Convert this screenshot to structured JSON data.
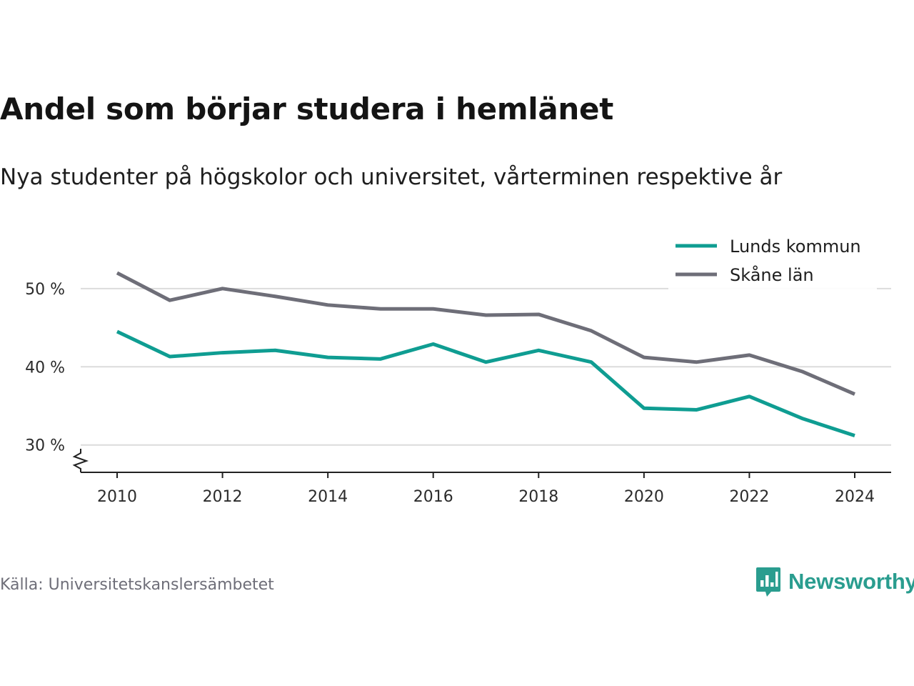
{
  "title": "Andel som börjar studera i hemlänet",
  "subtitle": "Nya studenter på högskolor och universitet, vårterminen respektive år",
  "source": "Källa: Universitetskanslersämbetet",
  "brand": {
    "name": "Newsworthy",
    "color": "#2a9d8f",
    "icon": "bar-chart-speech-bubble-icon"
  },
  "chart_data": {
    "type": "line",
    "x": [
      2010,
      2011,
      2012,
      2013,
      2014,
      2015,
      2016,
      2017,
      2018,
      2019,
      2020,
      2021,
      2022,
      2023,
      2024
    ],
    "series": [
      {
        "name": "Lunds kommun",
        "color": "#0f9d92",
        "values": [
          44.5,
          41.3,
          41.8,
          42.1,
          41.2,
          41.0,
          42.9,
          40.6,
          42.1,
          40.6,
          34.7,
          34.5,
          36.2,
          33.4,
          31.2
        ]
      },
      {
        "name": "Skåne län",
        "color": "#6e6e78",
        "values": [
          52.0,
          48.5,
          50.0,
          49.0,
          47.9,
          47.4,
          47.4,
          46.6,
          46.7,
          44.6,
          41.2,
          40.6,
          41.5,
          39.4,
          36.5
        ]
      }
    ],
    "xticks": [
      "2010",
      "2012",
      "2014",
      "2016",
      "2018",
      "2020",
      "2022",
      "2024"
    ],
    "yticks": [
      "30 %",
      "40 %",
      "50 %"
    ],
    "ylim": [
      26.5,
      53
    ],
    "xlim": [
      2010,
      2024
    ],
    "grid": true,
    "axis_break": true,
    "legend_position": "top-right"
  }
}
